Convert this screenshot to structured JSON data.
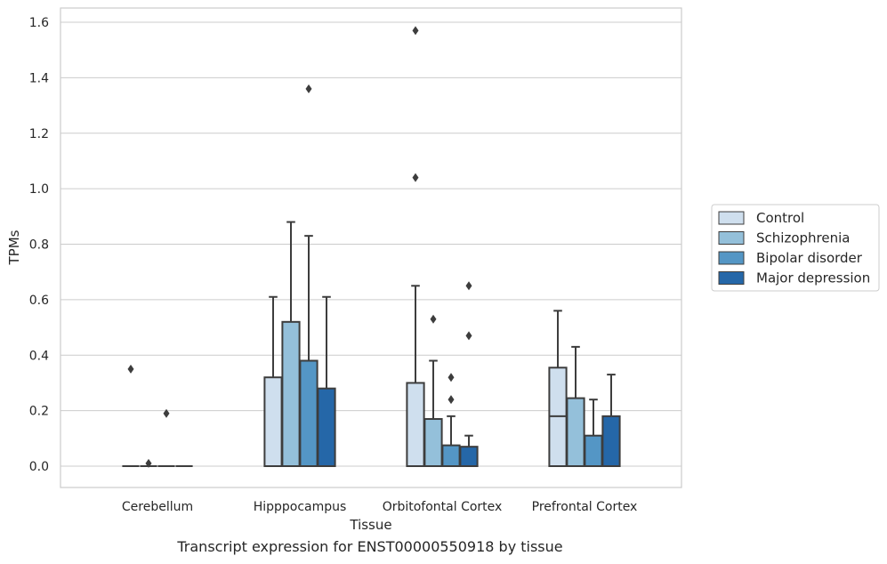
{
  "caption": "Transcript expression for ENST00000550918 by tissue",
  "chart_data": {
    "type": "box",
    "xlabel": "Tissue",
    "ylabel": "TPMs",
    "ylim": [
      -0.075,
      1.65
    ],
    "yticks": [
      0.0,
      0.2,
      0.4,
      0.6,
      0.8,
      1.0,
      1.2,
      1.4,
      1.6
    ],
    "ytick_labels": [
      "0.0",
      "0.2",
      "0.4",
      "0.6",
      "0.8",
      "1.0",
      "1.2",
      "1.4",
      "1.6"
    ],
    "grid": "horizontal",
    "legend_position": "right, outside plot",
    "categories": [
      "Cerebellum",
      "Hipppocampus",
      "Orbitofontal Cortex",
      "Prefrontal Cortex"
    ],
    "series": [
      {
        "name": "Control",
        "color": "#cfdfee",
        "boxes": [
          {
            "q1": 0.0,
            "median": 0.0,
            "q3": 0.0,
            "whislo": 0.0,
            "whishi": 0.0,
            "fliers": [
              0.35
            ]
          },
          {
            "q1": 0.0,
            "median": 0.0,
            "q3": 0.32,
            "whislo": 0.0,
            "whishi": 0.61,
            "fliers": []
          },
          {
            "q1": 0.0,
            "median": 0.0,
            "q3": 0.3,
            "whislo": 0.0,
            "whishi": 0.65,
            "fliers": [
              1.04,
              1.57
            ]
          },
          {
            "q1": 0.0,
            "median": 0.18,
            "q3": 0.355,
            "whislo": 0.0,
            "whishi": 0.56,
            "fliers": []
          }
        ]
      },
      {
        "name": "Schizophrenia",
        "color": "#94c0da",
        "boxes": [
          {
            "q1": 0.0,
            "median": 0.0,
            "q3": 0.0,
            "whislo": 0.0,
            "whishi": 0.0,
            "fliers": [
              0.01
            ]
          },
          {
            "q1": 0.0,
            "median": 0.0,
            "q3": 0.52,
            "whislo": 0.0,
            "whishi": 0.88,
            "fliers": []
          },
          {
            "q1": 0.0,
            "median": 0.0,
            "q3": 0.17,
            "whislo": 0.0,
            "whishi": 0.38,
            "fliers": [
              0.53
            ]
          },
          {
            "q1": 0.0,
            "median": 0.0,
            "q3": 0.245,
            "whislo": 0.0,
            "whishi": 0.43,
            "fliers": []
          }
        ]
      },
      {
        "name": "Bipolar disorder",
        "color": "#5496c5",
        "boxes": [
          {
            "q1": 0.0,
            "median": 0.0,
            "q3": 0.0,
            "whislo": 0.0,
            "whishi": 0.0,
            "fliers": [
              0.19
            ]
          },
          {
            "q1": 0.0,
            "median": 0.0,
            "q3": 0.38,
            "whislo": 0.0,
            "whishi": 0.83,
            "fliers": [
              1.36
            ]
          },
          {
            "q1": 0.0,
            "median": 0.0,
            "q3": 0.075,
            "whislo": 0.0,
            "whishi": 0.18,
            "fliers": [
              0.24,
              0.32
            ]
          },
          {
            "q1": 0.0,
            "median": 0.0,
            "q3": 0.11,
            "whislo": 0.0,
            "whishi": 0.24,
            "fliers": []
          }
        ]
      },
      {
        "name": "Major depression",
        "color": "#2567a8",
        "boxes": [
          {
            "q1": 0.0,
            "median": 0.0,
            "q3": 0.0,
            "whislo": 0.0,
            "whishi": 0.0,
            "fliers": []
          },
          {
            "q1": 0.0,
            "median": 0.0,
            "q3": 0.28,
            "whislo": 0.0,
            "whishi": 0.61,
            "fliers": []
          },
          {
            "q1": 0.0,
            "median": 0.0,
            "q3": 0.07,
            "whislo": 0.0,
            "whishi": 0.11,
            "fliers": [
              0.47,
              0.65
            ]
          },
          {
            "q1": 0.0,
            "median": 0.0,
            "q3": 0.18,
            "whislo": 0.0,
            "whishi": 0.33,
            "fliers": []
          }
        ]
      }
    ]
  }
}
